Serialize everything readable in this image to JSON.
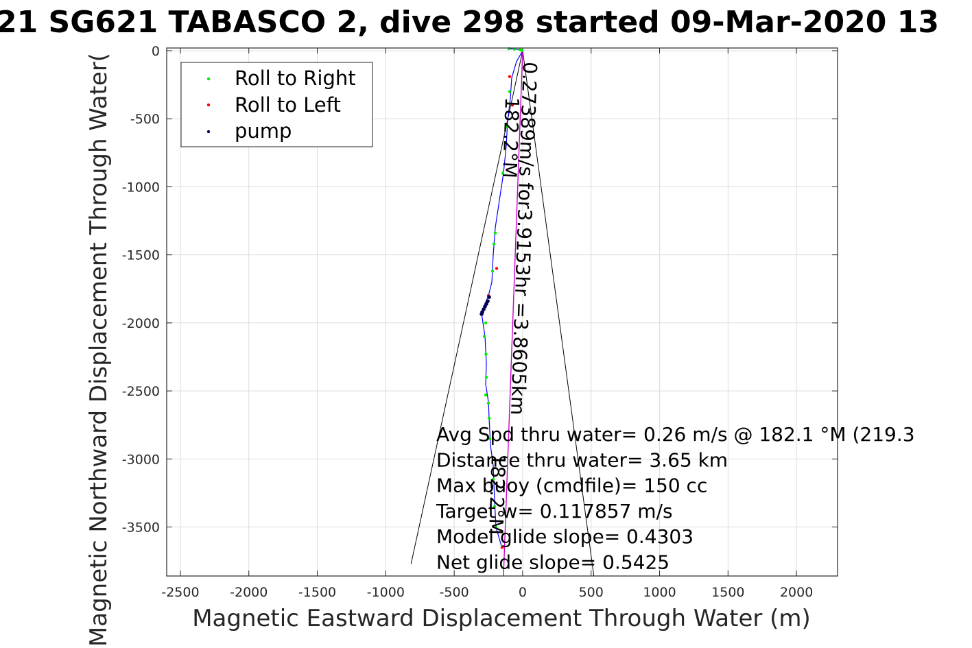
{
  "chart_data": {
    "type": "scatter",
    "title": "21 SG621 TABASCO 2, dive 298 started 09-Mar-2020 13",
    "xlabel": "Magnetic Eastward Displacement Through Water (m)",
    "ylabel": "Magnetic Northward Displacement Through Water(",
    "xlim": [
      -2600,
      2300
    ],
    "ylim": [
      -3860,
      20
    ],
    "x_ticks": [
      -2500,
      -2000,
      -1500,
      -1000,
      -500,
      0,
      500,
      1000,
      1500,
      2000
    ],
    "y_ticks": [
      0,
      -500,
      -1000,
      -1500,
      -2000,
      -2500,
      -3000,
      -3500
    ],
    "grid": true,
    "legend": {
      "placement": "top-left",
      "entries": [
        {
          "label": "Roll to Right",
          "color": "#00ee00"
        },
        {
          "label": "Roll to Left",
          "color": "#ff0000"
        },
        {
          "label": "pump",
          "color": "#000050"
        }
      ]
    },
    "colors": {
      "track": "#0000ff",
      "roll_right": "#00ee00",
      "roll_left": "#ff0000",
      "pump": "#000050",
      "heading_line": "#cc00cc",
      "cone": "#000000"
    },
    "track": [
      [
        -100,
        15
      ],
      [
        -60,
        12
      ],
      [
        -20,
        8
      ],
      [
        0,
        0
      ],
      [
        -45,
        -80
      ],
      [
        -80,
        -200
      ],
      [
        -90,
        -350
      ],
      [
        -110,
        -520
      ],
      [
        -120,
        -700
      ],
      [
        -140,
        -900
      ],
      [
        -170,
        -1100
      ],
      [
        -200,
        -1300
      ],
      [
        -215,
        -1500
      ],
      [
        -225,
        -1700
      ],
      [
        -250,
        -1800
      ],
      [
        -280,
        -1870
      ],
      [
        -300,
        -1930
      ],
      [
        -290,
        -2000
      ],
      [
        -275,
        -2100
      ],
      [
        -265,
        -2300
      ],
      [
        -270,
        -2450
      ],
      [
        -250,
        -2580
      ],
      [
        -245,
        -2700
      ],
      [
        -235,
        -2900
      ],
      [
        -215,
        -3050
      ],
      [
        -205,
        -3300
      ],
      [
        -195,
        -3500
      ],
      [
        -155,
        -3640
      ]
    ],
    "roll_right_points": [
      [
        -100,
        15
      ],
      [
        -60,
        12
      ],
      [
        -20,
        8
      ],
      [
        -5,
        2
      ],
      [
        -95,
        -300
      ],
      [
        -115,
        -560
      ],
      [
        -145,
        -900
      ],
      [
        -200,
        -1340
      ],
      [
        -210,
        -1420
      ],
      [
        -220,
        -1620
      ],
      [
        -270,
        -2000
      ],
      [
        -280,
        -2100
      ],
      [
        -268,
        -2230
      ],
      [
        -265,
        -2400
      ],
      [
        -270,
        -2530
      ],
      [
        -250,
        -2590
      ],
      [
        -245,
        -2700
      ],
      [
        -240,
        -2850
      ],
      [
        -215,
        -3150
      ],
      [
        -205,
        -3350
      ],
      [
        -195,
        -3500
      ]
    ],
    "roll_left_points": [
      [
        -95,
        -190
      ],
      [
        -75,
        -400
      ],
      [
        -250,
        -1800
      ],
      [
        -190,
        -1600
      ],
      [
        -150,
        -3650
      ]
    ],
    "pump_points": [
      [
        -245,
        -1810
      ],
      [
        -255,
        -1840
      ],
      [
        -265,
        -1860
      ],
      [
        -275,
        -1880
      ],
      [
        -285,
        -1900
      ],
      [
        -295,
        -1920
      ],
      [
        -300,
        -1935
      ]
    ],
    "heading_line": [
      [
        0,
        0
      ],
      [
        -140,
        -3860
      ]
    ],
    "cone": [
      [
        [
          0,
          0
        ],
        [
          -815,
          -3770
        ]
      ],
      [
        [
          0,
          0
        ],
        [
          520,
          -3860
        ]
      ]
    ],
    "annotations": [
      {
        "text": "0.27389m/s for3.9153hr =3.8605km",
        "x": 5,
        "y": -80,
        "rotation": 92
      },
      {
        "text": "182.2°M",
        "x": -125,
        "y": -340,
        "rotation": 92
      },
      {
        "text": "182.2°M",
        "x": -225,
        "y": -2960,
        "rotation": 92
      }
    ],
    "stats_text": [
      "Avg Spd thru water=  0.26 m/s @ 182.1 °M (219.3",
      "Distance thru water=  3.65 km",
      "Max buoy (cmdfile)= 150 cc",
      "Target w= 0.117857 m/s",
      "Model glide slope= 0.4303",
      "Net glide slope= 0.5425"
    ]
  }
}
